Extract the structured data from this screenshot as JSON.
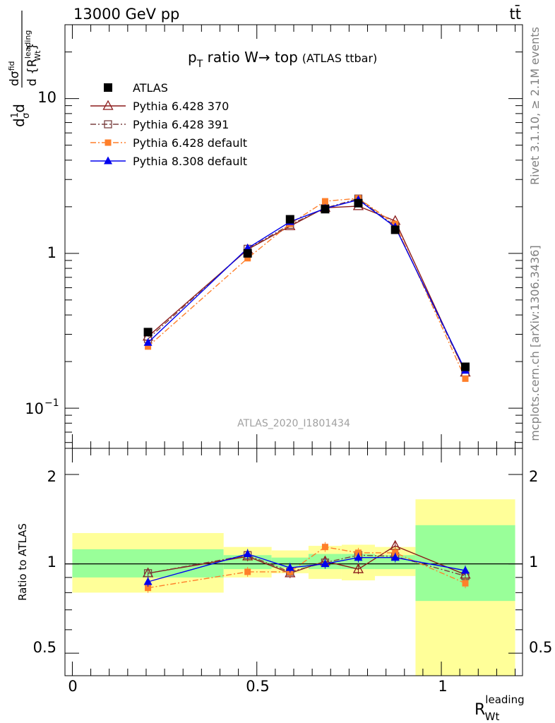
{
  "header": {
    "energy_label": "13000 GeV pp",
    "process_label": "tt̄"
  },
  "side_labels": {
    "rivet": "Rivet 3.1.10, ≥ 2.1M events",
    "mcplots": "mcplots.cern.ch [arXiv:1306.3436]"
  },
  "colors": {
    "atlas": "#000000",
    "py370": "#8b1a1a",
    "py391": "#7a4040",
    "pydef": "#ff7f2a",
    "py8": "#0000ee",
    "band_inner": "#99ff99",
    "band_outer": "#ffff99"
  },
  "chart_data": [
    {
      "type": "line",
      "name": "main",
      "title_main": "p",
      "title_sub": "T",
      "title_rest": " ratio W→ top",
      "title_small": "(ATLAS ttbar)",
      "watermark": "ATLAS_2020_I1801434",
      "ylabel_parts": [
        "d",
        "1",
        "σ",
        "d",
        "dσ",
        "fid",
        "d {R",
        "leading",
        "Wt",
        "}"
      ],
      "yscale": "log",
      "ylim": [
        0.055,
        30
      ],
      "xlim": [
        -0.02,
        1.22
      ],
      "ytick_labels": [
        "10",
        "1",
        "10"
      ],
      "ytick_exponent": "−1",
      "legend_position": "top-left",
      "x": [
        0.205,
        0.475,
        0.59,
        0.685,
        0.775,
        0.875,
        1.065
      ],
      "series": [
        {
          "name": "ATLAS",
          "key": "atlas",
          "values": [
            0.31,
            1.0,
            1.66,
            1.93,
            2.11,
            1.42,
            0.185
          ]
        },
        {
          "name": "Pythia 6.428 370",
          "key": "py370",
          "values": [
            0.29,
            1.06,
            1.5,
            1.97,
            2.02,
            1.62,
            0.17
          ]
        },
        {
          "name": "Pythia 6.428 391",
          "key": "py391",
          "values": [
            0.28,
            1.07,
            1.53,
            1.96,
            2.26,
            1.5,
            0.17
          ]
        },
        {
          "name": "Pythia 6.428 default",
          "key": "pydef",
          "values": [
            0.25,
            0.93,
            1.55,
            2.17,
            2.27,
            1.55,
            0.155
          ]
        },
        {
          "name": "Pythia 8.308 default",
          "key": "py8",
          "values": [
            0.265,
            1.08,
            1.6,
            1.95,
            2.22,
            1.48,
            0.175
          ]
        }
      ]
    },
    {
      "type": "line",
      "name": "ratio",
      "ylabel": "Ratio to ATLAS",
      "xlabel_main": "R",
      "xlabel_sup": "leading",
      "xlabel_sub": "Wt",
      "yscale": "log",
      "ylim": [
        0.42,
        2.45
      ],
      "xlim": [
        -0.02,
        1.22
      ],
      "ytick_labels": [
        "2",
        "1",
        "0.5"
      ],
      "xtick_labels": [
        "0",
        "0.5",
        "1"
      ],
      "bins": [
        {
          "lo": 0.0,
          "hi": 0.41,
          "inner": [
            0.9,
            1.12
          ],
          "outer": [
            0.8,
            1.27
          ]
        },
        {
          "lo": 0.41,
          "hi": 0.54,
          "inner": [
            0.96,
            1.07
          ],
          "outer": [
            0.9,
            1.14
          ]
        },
        {
          "lo": 0.54,
          "hi": 0.64,
          "inner": [
            0.97,
            1.05
          ],
          "outer": [
            0.93,
            1.11
          ]
        },
        {
          "lo": 0.64,
          "hi": 0.73,
          "inner": [
            0.96,
            1.08
          ],
          "outer": [
            0.89,
            1.15
          ]
        },
        {
          "lo": 0.73,
          "hi": 0.82,
          "inner": [
            0.96,
            1.08
          ],
          "outer": [
            0.88,
            1.16
          ]
        },
        {
          "lo": 0.82,
          "hi": 0.93,
          "inner": [
            0.96,
            1.07
          ],
          "outer": [
            0.91,
            1.14
          ]
        },
        {
          "lo": 0.93,
          "hi": 1.2,
          "inner": [
            0.75,
            1.35
          ],
          "outer": [
            0.35,
            1.65
          ]
        }
      ],
      "x": [
        0.205,
        0.475,
        0.59,
        0.685,
        0.775,
        0.875,
        1.065
      ],
      "series": [
        {
          "name": "Pythia 6.428 370",
          "key": "py370",
          "values": [
            0.93,
            1.06,
            0.93,
            1.02,
            0.96,
            1.15,
            0.92
          ]
        },
        {
          "name": "Pythia 6.428 391",
          "key": "py391",
          "values": [
            0.93,
            1.07,
            0.94,
            1.01,
            1.07,
            1.06,
            0.91
          ]
        },
        {
          "name": "Pythia 6.428 default",
          "key": "pydef",
          "values": [
            0.83,
            0.94,
            0.94,
            1.14,
            1.09,
            1.09,
            0.86
          ]
        },
        {
          "name": "Pythia 8.308 default",
          "key": "py8",
          "values": [
            0.87,
            1.08,
            0.97,
            1.0,
            1.05,
            1.05,
            0.95
          ]
        }
      ]
    }
  ]
}
